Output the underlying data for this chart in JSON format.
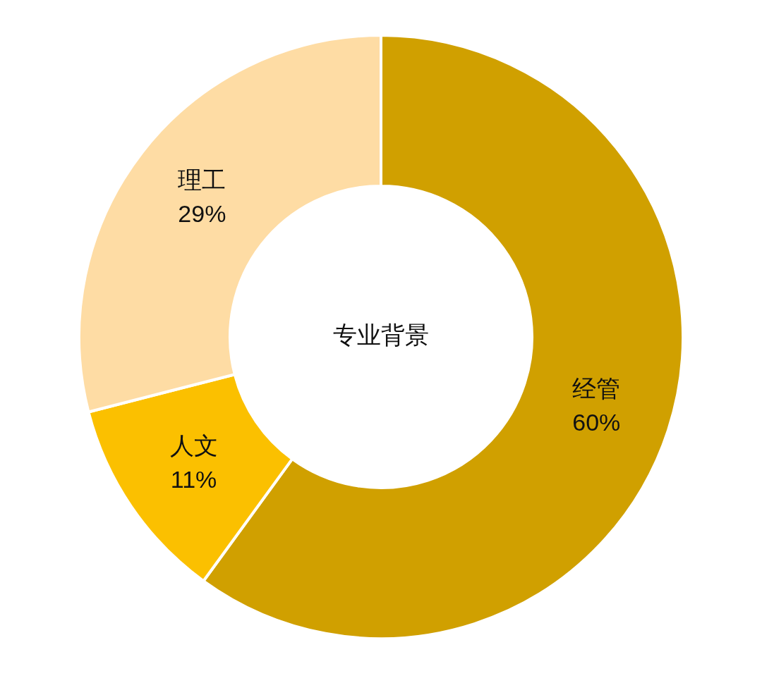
{
  "chart_data": {
    "type": "donut",
    "title": "专业背景",
    "categories": [
      "经管",
      "人文",
      "理工"
    ],
    "values": [
      60,
      11,
      29
    ],
    "colors": [
      "#d0a000",
      "#fbc000",
      "#fedca4"
    ],
    "value_labels": [
      "60%",
      "11%",
      "29%"
    ],
    "legend": false
  }
}
